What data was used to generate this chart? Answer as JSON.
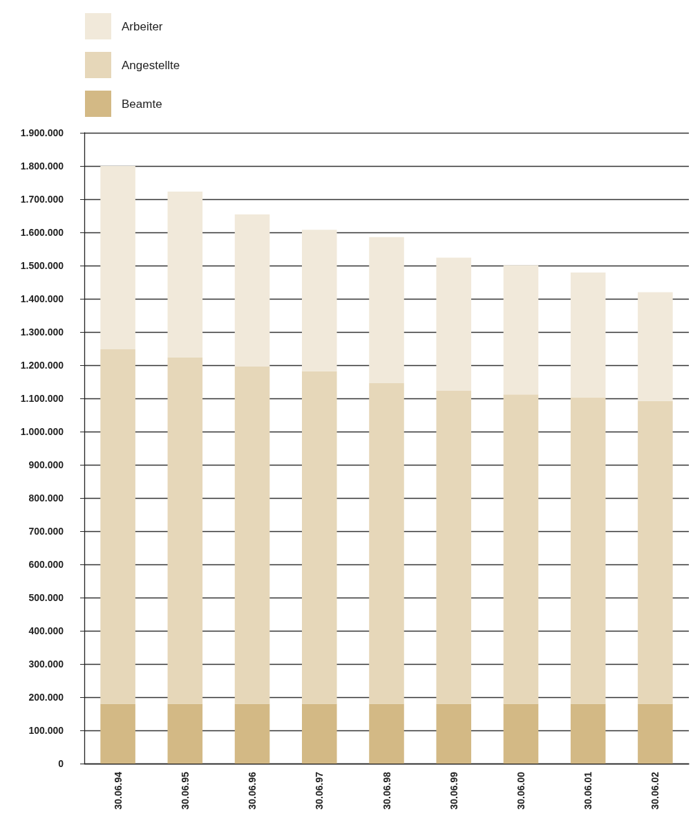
{
  "chart_data": {
    "type": "bar",
    "stacked": true,
    "categories": [
      "30.06.94",
      "30.06.95",
      "30.06.96",
      "30.06.97",
      "30.06.98",
      "30.06.99",
      "30.06.00",
      "30.06.01",
      "30.06.02"
    ],
    "series": [
      {
        "name": "Beamte",
        "color": "#d3b985",
        "values": [
          180000,
          180000,
          180000,
          180000,
          180000,
          180000,
          180000,
          180000,
          180000
        ]
      },
      {
        "name": "Angestellte",
        "color": "#e6d7b9",
        "values": [
          1068000,
          1043000,
          1016000,
          1002000,
          966000,
          943000,
          932000,
          922000,
          912000
        ]
      },
      {
        "name": "Arbeiter",
        "color": "#f1e9da",
        "values": [
          552000,
          500000,
          458000,
          426000,
          440000,
          401000,
          389000,
          377000,
          328000
        ]
      }
    ],
    "ylim": [
      0,
      1900000
    ],
    "yticks": [
      {
        "value": 0,
        "label": "0"
      },
      {
        "value": 100000,
        "label": "100.000"
      },
      {
        "value": 200000,
        "label": "200.000"
      },
      {
        "value": 300000,
        "label": "300.000"
      },
      {
        "value": 400000,
        "label": "400.000"
      },
      {
        "value": 500000,
        "label": "500.000"
      },
      {
        "value": 600000,
        "label": "600.000"
      },
      {
        "value": 700000,
        "label": "700.000"
      },
      {
        "value": 800000,
        "label": "800.000"
      },
      {
        "value": 900000,
        "label": "900.000"
      },
      {
        "value": 1000000,
        "label": "1.000.000"
      },
      {
        "value": 1100000,
        "label": "1.100.000"
      },
      {
        "value": 1200000,
        "label": "1.200.000"
      },
      {
        "value": 1300000,
        "label": "1.300.000"
      },
      {
        "value": 1400000,
        "label": "1.400.000"
      },
      {
        "value": 1500000,
        "label": "1.500.000"
      },
      {
        "value": 1600000,
        "label": "1.600.000"
      },
      {
        "value": 1700000,
        "label": "1.700.000"
      },
      {
        "value": 1800000,
        "label": "1.800.000"
      },
      {
        "value": 1900000,
        "label": "1.900.000"
      }
    ],
    "grid": "y",
    "legend": "top left"
  }
}
